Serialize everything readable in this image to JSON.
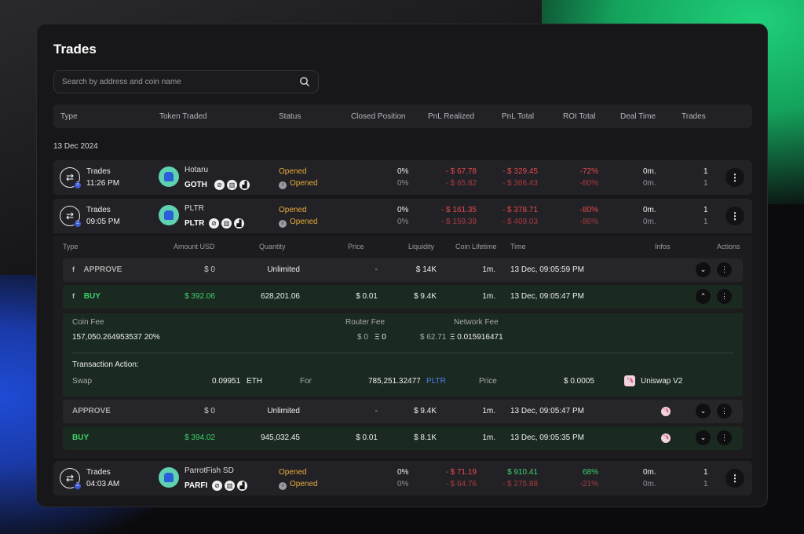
{
  "panel": {
    "title": "Trades"
  },
  "search": {
    "placeholder": "Search by address and coin name"
  },
  "columns": [
    "Type",
    "Token Traded",
    "Status",
    "Closed Position",
    "PnL Realized",
    "PnL Total",
    "ROI Total",
    "Deal Time",
    "Trades"
  ],
  "date_group": "13 Dec 2024",
  "trades": [
    {
      "type": "Trades",
      "time": "11:26 PM",
      "token_name": "Hotaru",
      "token_symbol": "GOTH",
      "status1": "Opened",
      "status2": "Opened",
      "closed1": "0%",
      "closed2": "0%",
      "pnl_realized1": "- $ 67.78",
      "pnl_realized2": "- $ 65.82",
      "pnl_total1": "- $ 329.45",
      "pnl_total2": "- $ 366.43",
      "roi1": "-72%",
      "roi2": "-80%",
      "deal1": "0m.",
      "deal2": "0m.",
      "trades1": "1",
      "trades2": "1"
    },
    {
      "type": "Trades",
      "time": "09:05 PM",
      "token_name": "PLTR",
      "token_symbol": "PLTR",
      "status1": "Opened",
      "status2": "Opened",
      "closed1": "0%",
      "closed2": "0%",
      "pnl_realized1": "- $ 161.35",
      "pnl_realized2": "- $ 159.39",
      "pnl_total1": "- $ 378.71",
      "pnl_total2": "- $ 409.03",
      "roi1": "-80%",
      "roi2": "-86%",
      "deal1": "0m.",
      "deal2": "0m.",
      "trades1": "1",
      "trades2": "1"
    },
    {
      "type": "Trades",
      "time": "04:03 AM",
      "token_name": "ParrotFish SD",
      "token_symbol": "PARFI",
      "status1": "Opened",
      "status2": "Opened",
      "closed1": "0%",
      "closed2": "0%",
      "pnl_realized1": "- $ 71.19",
      "pnl_realized2": "- $ 64.76",
      "pnl_total1": "$ 910.41",
      "pnl_total2": "- $ 275.88",
      "roi1": "68%",
      "roi2": "-21%",
      "deal1": "0m.",
      "deal2": "0m.",
      "trades1": "1",
      "trades2": "1"
    }
  ],
  "sub_columns": [
    "Type",
    "Amount USD",
    "Quantity",
    "Price",
    "Liquidity",
    "Coin Lifetime",
    "Time",
    "Infos",
    "Actions"
  ],
  "sub_rows": [
    {
      "type": "APPROVE",
      "amount": "$ 0",
      "quantity": "Unlimited",
      "price": "-",
      "liquidity": "$ 14K",
      "lifetime": "1m.",
      "time": "13 Dec, 09:05:59 PM"
    },
    {
      "type": "BUY",
      "amount": "$ 392.06",
      "quantity": "628,201.06",
      "price": "$ 0.01",
      "liquidity": "$ 9.4K",
      "lifetime": "1m.",
      "time": "13 Dec, 09:05:47 PM"
    },
    {
      "type": "APPROVE",
      "amount": "$ 0",
      "quantity": "Unlimited",
      "price": "-",
      "liquidity": "$ 9.4K",
      "lifetime": "1m.",
      "time": "13 Dec, 09:05:47 PM"
    },
    {
      "type": "BUY",
      "amount": "$ 394.02",
      "quantity": "945,032.45",
      "price": "$ 0.01",
      "liquidity": "$ 8.1K",
      "lifetime": "1m.",
      "time": "13 Dec, 09:05:35 PM"
    }
  ],
  "details": {
    "coin_fee_label": "Coin Fee",
    "coin_fee_value": "157,050.264953537 20%",
    "router_fee_label": "Router Fee",
    "router_fee_usd": "$ 0",
    "router_fee_eth": "Ξ 0",
    "network_fee_label": "Network Fee",
    "network_fee_usd": "$ 62.71",
    "network_fee_eth": "Ξ 0.015916471",
    "tx_action_label": "Transaction Action:",
    "swap_label": "Swap",
    "swap_amount": "0.09951",
    "swap_unit": "ETH",
    "for_label": "For",
    "for_amount": "785,251.32477",
    "for_token": "PLTR",
    "price_label": "Price",
    "price_value": "$ 0.0005",
    "dex": "Uniswap V2"
  },
  "icons": {
    "search": "search-icon",
    "swap": "swap-icon",
    "more": "more-vertical-icon",
    "chevron_down": "chevron-down-icon",
    "chevron_up": "chevron-up-icon",
    "uniswap": "uniswap-icon"
  },
  "colors": {
    "negative": "#e5484d",
    "positive": "#3fcf6e",
    "opened": "#e6a93a",
    "link": "#4f7df0"
  }
}
